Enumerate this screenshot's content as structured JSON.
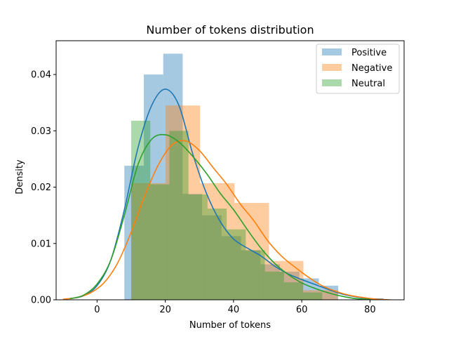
{
  "chart_data": {
    "type": "histogram",
    "title": "Number of tokens distribution",
    "xlabel": "Number of tokens",
    "ylabel": "Density",
    "xlim": [
      -12,
      90
    ],
    "ylim": [
      0,
      0.046
    ],
    "x_ticks": [
      0,
      20,
      40,
      60,
      80
    ],
    "x_tick_labels": [
      "0",
      "20",
      "40",
      "60",
      "80"
    ],
    "y_ticks": [
      0.0,
      0.01,
      0.02,
      0.03,
      0.04
    ],
    "y_tick_labels": [
      "0.00",
      "0.01",
      "0.02",
      "0.03",
      "0.04"
    ],
    "grid": false,
    "legend_position": "top-right",
    "series": [
      {
        "name": "Positive",
        "color": "#1f77b4",
        "bins": [
          {
            "x0": 8,
            "x1": 13.7,
            "density": 0.0238
          },
          {
            "x0": 13.7,
            "x1": 19.4,
            "density": 0.04
          },
          {
            "x0": 19.4,
            "x1": 25.1,
            "density": 0.0437
          },
          {
            "x0": 25.1,
            "x1": 30.8,
            "density": 0.0188
          },
          {
            "x0": 30.8,
            "x1": 36.5,
            "density": 0.015
          },
          {
            "x0": 36.5,
            "x1": 42.2,
            "density": 0.0113
          },
          {
            "x0": 42.2,
            "x1": 47.9,
            "density": 0.0088
          },
          {
            "x0": 47.9,
            "x1": 53.6,
            "density": 0.0063
          },
          {
            "x0": 53.6,
            "x1": 59.3,
            "density": 0.005
          },
          {
            "x0": 59.3,
            "x1": 65.0,
            "density": 0.0038
          },
          {
            "x0": 65.0,
            "x1": 70.7,
            "density": 0.0025
          }
        ],
        "kde": {
          "x": [
            -8,
            -4,
            0,
            4,
            8,
            12,
            16,
            20,
            24,
            28,
            32,
            36,
            40,
            44,
            48,
            52,
            56,
            60,
            64,
            68,
            72,
            76,
            80,
            84
          ],
          "y": [
            0.0002,
            0.0007,
            0.0025,
            0.007,
            0.016,
            0.027,
            0.0345,
            0.0374,
            0.0345,
            0.026,
            0.019,
            0.014,
            0.0108,
            0.0092,
            0.0078,
            0.006,
            0.0046,
            0.0036,
            0.0027,
            0.0018,
            0.001,
            0.0005,
            0.0002,
            0.0001
          ]
        }
      },
      {
        "name": "Negative",
        "color": "#ff7f0e",
        "bins": [
          {
            "x0": 10,
            "x1": 20.1,
            "density": 0.0207
          },
          {
            "x0": 20.1,
            "x1": 30.2,
            "density": 0.0345
          },
          {
            "x0": 30.2,
            "x1": 40.3,
            "density": 0.0207
          },
          {
            "x0": 40.3,
            "x1": 50.4,
            "density": 0.0172
          },
          {
            "x0": 50.4,
            "x1": 60.5,
            "density": 0.0069
          },
          {
            "x0": 60.5,
            "x1": 70.6,
            "density": 0.0017
          }
        ],
        "kde": {
          "x": [
            -10,
            -6,
            -2,
            2,
            6,
            10,
            14,
            18,
            22,
            26,
            30,
            34,
            38,
            42,
            46,
            50,
            54,
            58,
            62,
            66,
            70,
            74,
            78,
            82,
            86
          ],
          "y": [
            0.0001,
            0.0004,
            0.0012,
            0.003,
            0.0065,
            0.012,
            0.0185,
            0.024,
            0.0275,
            0.0282,
            0.0265,
            0.0235,
            0.0205,
            0.017,
            0.014,
            0.0105,
            0.0078,
            0.0058,
            0.004,
            0.0025,
            0.0015,
            0.0008,
            0.0004,
            0.0001,
            0.0
          ]
        }
      },
      {
        "name": "Neutral",
        "color": "#2ca02c",
        "bins": [
          {
            "x0": 10,
            "x1": 15.6,
            "density": 0.0318
          },
          {
            "x0": 15.6,
            "x1": 21.2,
            "density": 0.0205
          },
          {
            "x0": 21.2,
            "x1": 26.8,
            "density": 0.03
          },
          {
            "x0": 26.8,
            "x1": 32.4,
            "density": 0.0187
          },
          {
            "x0": 32.4,
            "x1": 38.0,
            "density": 0.0162
          },
          {
            "x0": 38.0,
            "x1": 43.6,
            "density": 0.0125
          },
          {
            "x0": 43.6,
            "x1": 49.2,
            "density": 0.0088
          },
          {
            "x0": 49.2,
            "x1": 54.8,
            "density": 0.005
          },
          {
            "x0": 54.8,
            "x1": 60.4,
            "density": 0.0031
          },
          {
            "x0": 60.4,
            "x1": 66.0,
            "density": 0.0013
          }
        ],
        "kde": {
          "x": [
            -8,
            -4,
            0,
            4,
            8,
            12,
            16,
            20,
            24,
            28,
            32,
            36,
            40,
            44,
            48,
            52,
            56,
            60,
            64,
            68,
            72,
            76,
            80
          ],
          "y": [
            0.0002,
            0.0008,
            0.0028,
            0.007,
            0.015,
            0.024,
            0.0285,
            0.0293,
            0.028,
            0.0255,
            0.0225,
            0.019,
            0.016,
            0.0125,
            0.0092,
            0.0065,
            0.0045,
            0.003,
            0.002,
            0.0012,
            0.0006,
            0.0002,
            0.0001
          ]
        }
      }
    ]
  }
}
